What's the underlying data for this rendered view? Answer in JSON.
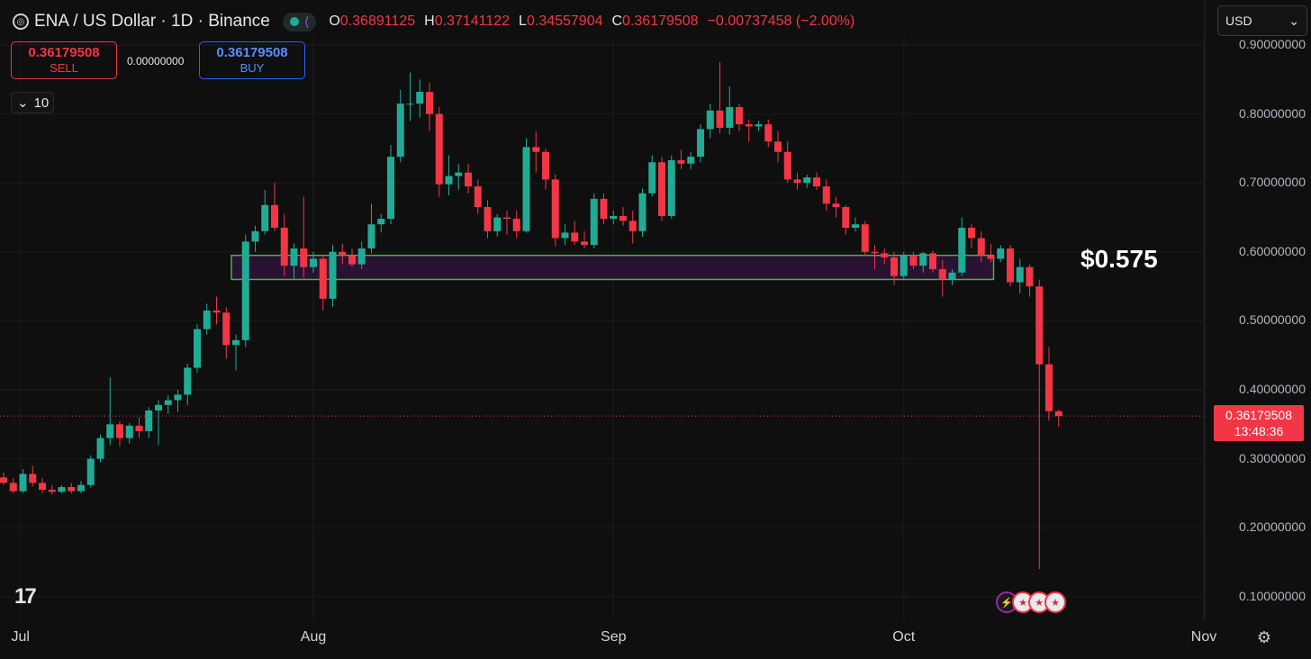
{
  "header": {
    "symbol_title": "ENA / US Dollar · 1D · Binance",
    "ohlc": [
      {
        "key": "O",
        "value": "0.36891125"
      },
      {
        "key": "H",
        "value": "0.37141122"
      },
      {
        "key": "L",
        "value": "0.34557904"
      },
      {
        "key": "C",
        "value": "0.36179508"
      }
    ],
    "change": "−0.00737458 (−2.00%)"
  },
  "trade": {
    "sell_price": "0.36179508",
    "sell_label": "SELL",
    "spread": "0.00000000",
    "buy_price": "0.36179508",
    "buy_label": "BUY",
    "quantity": "10"
  },
  "currency_selector": "USD",
  "current_price": {
    "price": "0.36179508",
    "countdown": "13:48:36"
  },
  "annotation": "$0.575",
  "colors": {
    "up": "#22ab94",
    "down": "#f23645",
    "zone_border": "#4caf50",
    "zone_fill": "#2a1233"
  },
  "icons": [
    "tradingview-logo",
    "live-dot-icon",
    "data-glyph-icon",
    "chevron-down-icon",
    "settings-icon",
    "lightning-event-icon",
    "us-flag-event-icon"
  ],
  "chart_data": {
    "type": "candlestick",
    "title": "ENA / US Dollar · 1D · Binance",
    "ylim": [
      0.07,
      0.92
    ],
    "y_ticks": [
      "0.10000000",
      "0.20000000",
      "0.30000000",
      "0.40000000",
      "0.50000000",
      "0.60000000",
      "0.70000000",
      "0.80000000",
      "0.90000000"
    ],
    "x_ticks": [
      "Jul",
      "Aug",
      "Sep",
      "Oct",
      "Nov"
    ],
    "zone": {
      "low": 0.56,
      "high": 0.595,
      "from": "Jul 24",
      "to": "Oct 10"
    },
    "candles": [
      {
        "date": "Jun 30",
        "o": 0.273,
        "h": 0.28,
        "l": 0.262,
        "c": 0.265
      },
      {
        "date": "Jul 1",
        "o": 0.265,
        "h": 0.272,
        "l": 0.25,
        "c": 0.253
      },
      {
        "date": "Jul 2",
        "o": 0.253,
        "h": 0.285,
        "l": 0.25,
        "c": 0.278
      },
      {
        "date": "Jul 3",
        "o": 0.278,
        "h": 0.29,
        "l": 0.26,
        "c": 0.265
      },
      {
        "date": "Jul 4",
        "o": 0.265,
        "h": 0.272,
        "l": 0.25,
        "c": 0.255
      },
      {
        "date": "Jul 5",
        "o": 0.255,
        "h": 0.262,
        "l": 0.248,
        "c": 0.252
      },
      {
        "date": "Jul 6",
        "o": 0.252,
        "h": 0.262,
        "l": 0.25,
        "c": 0.259
      },
      {
        "date": "Jul 7",
        "o": 0.259,
        "h": 0.265,
        "l": 0.25,
        "c": 0.253
      },
      {
        "date": "Jul 8",
        "o": 0.253,
        "h": 0.268,
        "l": 0.25,
        "c": 0.262
      },
      {
        "date": "Jul 9",
        "o": 0.262,
        "h": 0.305,
        "l": 0.258,
        "c": 0.3
      },
      {
        "date": "Jul 10",
        "o": 0.3,
        "h": 0.335,
        "l": 0.295,
        "c": 0.33
      },
      {
        "date": "Jul 11",
        "o": 0.33,
        "h": 0.418,
        "l": 0.32,
        "c": 0.35
      },
      {
        "date": "Jul 12",
        "o": 0.35,
        "h": 0.355,
        "l": 0.318,
        "c": 0.33
      },
      {
        "date": "Jul 13",
        "o": 0.33,
        "h": 0.352,
        "l": 0.322,
        "c": 0.348
      },
      {
        "date": "Jul 14",
        "o": 0.348,
        "h": 0.36,
        "l": 0.33,
        "c": 0.34
      },
      {
        "date": "Jul 15",
        "o": 0.34,
        "h": 0.375,
        "l": 0.33,
        "c": 0.37
      },
      {
        "date": "Jul 16",
        "o": 0.37,
        "h": 0.385,
        "l": 0.32,
        "c": 0.378
      },
      {
        "date": "Jul 17",
        "o": 0.378,
        "h": 0.392,
        "l": 0.365,
        "c": 0.385
      },
      {
        "date": "Jul 18",
        "o": 0.385,
        "h": 0.4,
        "l": 0.368,
        "c": 0.393
      },
      {
        "date": "Jul 19",
        "o": 0.393,
        "h": 0.438,
        "l": 0.378,
        "c": 0.432
      },
      {
        "date": "Jul 20",
        "o": 0.432,
        "h": 0.495,
        "l": 0.425,
        "c": 0.488
      },
      {
        "date": "Jul 21",
        "o": 0.488,
        "h": 0.525,
        "l": 0.48,
        "c": 0.515
      },
      {
        "date": "Jul 22",
        "o": 0.515,
        "h": 0.535,
        "l": 0.495,
        "c": 0.512
      },
      {
        "date": "Jul 23",
        "o": 0.512,
        "h": 0.52,
        "l": 0.445,
        "c": 0.465
      },
      {
        "date": "Jul 24",
        "o": 0.465,
        "h": 0.48,
        "l": 0.428,
        "c": 0.472
      },
      {
        "date": "Jul 25",
        "o": 0.472,
        "h": 0.625,
        "l": 0.462,
        "c": 0.615
      },
      {
        "date": "Jul 26",
        "o": 0.615,
        "h": 0.638,
        "l": 0.6,
        "c": 0.63
      },
      {
        "date": "Jul 27",
        "o": 0.63,
        "h": 0.69,
        "l": 0.625,
        "c": 0.668
      },
      {
        "date": "Jul 28",
        "o": 0.668,
        "h": 0.7,
        "l": 0.63,
        "c": 0.635
      },
      {
        "date": "Jul 29",
        "o": 0.635,
        "h": 0.655,
        "l": 0.565,
        "c": 0.58
      },
      {
        "date": "Jul 30",
        "o": 0.58,
        "h": 0.612,
        "l": 0.56,
        "c": 0.605
      },
      {
        "date": "Jul 31",
        "o": 0.605,
        "h": 0.68,
        "l": 0.562,
        "c": 0.578
      },
      {
        "date": "Aug 1",
        "o": 0.578,
        "h": 0.6,
        "l": 0.57,
        "c": 0.59
      },
      {
        "date": "Aug 2",
        "o": 0.59,
        "h": 0.595,
        "l": 0.515,
        "c": 0.532
      },
      {
        "date": "Aug 3",
        "o": 0.532,
        "h": 0.61,
        "l": 0.52,
        "c": 0.6
      },
      {
        "date": "Aug 4",
        "o": 0.6,
        "h": 0.612,
        "l": 0.582,
        "c": 0.595
      },
      {
        "date": "Aug 5",
        "o": 0.595,
        "h": 0.605,
        "l": 0.578,
        "c": 0.582
      },
      {
        "date": "Aug 6",
        "o": 0.582,
        "h": 0.615,
        "l": 0.575,
        "c": 0.605
      },
      {
        "date": "Aug 7",
        "o": 0.605,
        "h": 0.67,
        "l": 0.598,
        "c": 0.64
      },
      {
        "date": "Aug 8",
        "o": 0.64,
        "h": 0.655,
        "l": 0.628,
        "c": 0.648
      },
      {
        "date": "Aug 9",
        "o": 0.648,
        "h": 0.755,
        "l": 0.64,
        "c": 0.738
      },
      {
        "date": "Aug 10",
        "o": 0.738,
        "h": 0.835,
        "l": 0.73,
        "c": 0.815
      },
      {
        "date": "Aug 11",
        "o": 0.815,
        "h": 0.86,
        "l": 0.79,
        "c": 0.815
      },
      {
        "date": "Aug 12",
        "o": 0.815,
        "h": 0.85,
        "l": 0.795,
        "c": 0.832
      },
      {
        "date": "Aug 13",
        "o": 0.832,
        "h": 0.845,
        "l": 0.775,
        "c": 0.8
      },
      {
        "date": "Aug 14",
        "o": 0.8,
        "h": 0.81,
        "l": 0.68,
        "c": 0.698
      },
      {
        "date": "Aug 15",
        "o": 0.698,
        "h": 0.74,
        "l": 0.682,
        "c": 0.71
      },
      {
        "date": "Aug 16",
        "o": 0.71,
        "h": 0.728,
        "l": 0.69,
        "c": 0.715
      },
      {
        "date": "Aug 17",
        "o": 0.715,
        "h": 0.728,
        "l": 0.685,
        "c": 0.695
      },
      {
        "date": "Aug 18",
        "o": 0.695,
        "h": 0.705,
        "l": 0.655,
        "c": 0.665
      },
      {
        "date": "Aug 19",
        "o": 0.665,
        "h": 0.675,
        "l": 0.62,
        "c": 0.63
      },
      {
        "date": "Aug 20",
        "o": 0.63,
        "h": 0.655,
        "l": 0.622,
        "c": 0.65
      },
      {
        "date": "Aug 21",
        "o": 0.65,
        "h": 0.66,
        "l": 0.625,
        "c": 0.648
      },
      {
        "date": "Aug 22",
        "o": 0.648,
        "h": 0.66,
        "l": 0.62,
        "c": 0.63
      },
      {
        "date": "Aug 23",
        "o": 0.63,
        "h": 0.765,
        "l": 0.628,
        "c": 0.752
      },
      {
        "date": "Aug 24",
        "o": 0.752,
        "h": 0.775,
        "l": 0.715,
        "c": 0.745
      },
      {
        "date": "Aug 25",
        "o": 0.745,
        "h": 0.75,
        "l": 0.69,
        "c": 0.705
      },
      {
        "date": "Aug 26",
        "o": 0.705,
        "h": 0.712,
        "l": 0.608,
        "c": 0.62
      },
      {
        "date": "Aug 27",
        "o": 0.62,
        "h": 0.64,
        "l": 0.61,
        "c": 0.628
      },
      {
        "date": "Aug 28",
        "o": 0.628,
        "h": 0.645,
        "l": 0.61,
        "c": 0.615
      },
      {
        "date": "Aug 29",
        "o": 0.615,
        "h": 0.63,
        "l": 0.605,
        "c": 0.61
      },
      {
        "date": "Aug 30",
        "o": 0.61,
        "h": 0.685,
        "l": 0.605,
        "c": 0.677
      },
      {
        "date": "Aug 31",
        "o": 0.677,
        "h": 0.685,
        "l": 0.64,
        "c": 0.648
      },
      {
        "date": "Sep 1",
        "o": 0.648,
        "h": 0.66,
        "l": 0.64,
        "c": 0.652
      },
      {
        "date": "Sep 2",
        "o": 0.652,
        "h": 0.665,
        "l": 0.638,
        "c": 0.645
      },
      {
        "date": "Sep 3",
        "o": 0.645,
        "h": 0.66,
        "l": 0.612,
        "c": 0.63
      },
      {
        "date": "Sep 4",
        "o": 0.63,
        "h": 0.692,
        "l": 0.622,
        "c": 0.685
      },
      {
        "date": "Sep 5",
        "o": 0.685,
        "h": 0.74,
        "l": 0.68,
        "c": 0.73
      },
      {
        "date": "Sep 6",
        "o": 0.73,
        "h": 0.738,
        "l": 0.645,
        "c": 0.652
      },
      {
        "date": "Sep 7",
        "o": 0.652,
        "h": 0.74,
        "l": 0.648,
        "c": 0.733
      },
      {
        "date": "Sep 8",
        "o": 0.733,
        "h": 0.748,
        "l": 0.72,
        "c": 0.728
      },
      {
        "date": "Sep 9",
        "o": 0.728,
        "h": 0.745,
        "l": 0.72,
        "c": 0.738
      },
      {
        "date": "Sep 10",
        "o": 0.738,
        "h": 0.785,
        "l": 0.73,
        "c": 0.778
      },
      {
        "date": "Sep 11",
        "o": 0.778,
        "h": 0.815,
        "l": 0.765,
        "c": 0.805
      },
      {
        "date": "Sep 12",
        "o": 0.805,
        "h": 0.875,
        "l": 0.772,
        "c": 0.78
      },
      {
        "date": "Sep 13",
        "o": 0.78,
        "h": 0.84,
        "l": 0.77,
        "c": 0.81
      },
      {
        "date": "Sep 14",
        "o": 0.81,
        "h": 0.815,
        "l": 0.775,
        "c": 0.785
      },
      {
        "date": "Sep 15",
        "o": 0.785,
        "h": 0.792,
        "l": 0.76,
        "c": 0.782
      },
      {
        "date": "Sep 16",
        "o": 0.782,
        "h": 0.79,
        "l": 0.775,
        "c": 0.785
      },
      {
        "date": "Sep 17",
        "o": 0.785,
        "h": 0.792,
        "l": 0.752,
        "c": 0.76
      },
      {
        "date": "Sep 18",
        "o": 0.76,
        "h": 0.775,
        "l": 0.73,
        "c": 0.745
      },
      {
        "date": "Sep 19",
        "o": 0.745,
        "h": 0.76,
        "l": 0.7,
        "c": 0.705
      },
      {
        "date": "Sep 20",
        "o": 0.705,
        "h": 0.715,
        "l": 0.69,
        "c": 0.7
      },
      {
        "date": "Sep 21",
        "o": 0.7,
        "h": 0.712,
        "l": 0.693,
        "c": 0.708
      },
      {
        "date": "Sep 22",
        "o": 0.708,
        "h": 0.715,
        "l": 0.69,
        "c": 0.695
      },
      {
        "date": "Sep 23",
        "o": 0.695,
        "h": 0.705,
        "l": 0.66,
        "c": 0.67
      },
      {
        "date": "Sep 24",
        "o": 0.67,
        "h": 0.68,
        "l": 0.65,
        "c": 0.665
      },
      {
        "date": "Sep 25",
        "o": 0.665,
        "h": 0.668,
        "l": 0.625,
        "c": 0.635
      },
      {
        "date": "Sep 26",
        "o": 0.635,
        "h": 0.65,
        "l": 0.63,
        "c": 0.64
      },
      {
        "date": "Sep 27",
        "o": 0.64,
        "h": 0.645,
        "l": 0.595,
        "c": 0.6
      },
      {
        "date": "Sep 28",
        "o": 0.6,
        "h": 0.61,
        "l": 0.575,
        "c": 0.598
      },
      {
        "date": "Sep 29",
        "o": 0.598,
        "h": 0.605,
        "l": 0.582,
        "c": 0.592
      },
      {
        "date": "Sep 30",
        "o": 0.592,
        "h": 0.6,
        "l": 0.552,
        "c": 0.565
      },
      {
        "date": "Oct 1",
        "o": 0.565,
        "h": 0.6,
        "l": 0.56,
        "c": 0.595
      },
      {
        "date": "Oct 2",
        "o": 0.595,
        "h": 0.6,
        "l": 0.575,
        "c": 0.58
      },
      {
        "date": "Oct 3",
        "o": 0.58,
        "h": 0.6,
        "l": 0.57,
        "c": 0.598
      },
      {
        "date": "Oct 4",
        "o": 0.598,
        "h": 0.602,
        "l": 0.57,
        "c": 0.575
      },
      {
        "date": "Oct 5",
        "o": 0.575,
        "h": 0.588,
        "l": 0.535,
        "c": 0.56
      },
      {
        "date": "Oct 6",
        "o": 0.56,
        "h": 0.575,
        "l": 0.552,
        "c": 0.57
      },
      {
        "date": "Oct 7",
        "o": 0.57,
        "h": 0.65,
        "l": 0.565,
        "c": 0.635
      },
      {
        "date": "Oct 8",
        "o": 0.635,
        "h": 0.64,
        "l": 0.605,
        "c": 0.62
      },
      {
        "date": "Oct 9",
        "o": 0.62,
        "h": 0.63,
        "l": 0.585,
        "c": 0.595
      },
      {
        "date": "Oct 10",
        "o": 0.595,
        "h": 0.612,
        "l": 0.585,
        "c": 0.59
      },
      {
        "date": "Oct 11",
        "o": 0.59,
        "h": 0.61,
        "l": 0.585,
        "c": 0.605
      },
      {
        "date": "Oct 12",
        "o": 0.605,
        "h": 0.61,
        "l": 0.55,
        "c": 0.556
      },
      {
        "date": "Oct 13",
        "o": 0.556,
        "h": 0.59,
        "l": 0.54,
        "c": 0.578
      },
      {
        "date": "Oct 14",
        "o": 0.578,
        "h": 0.582,
        "l": 0.535,
        "c": 0.55
      },
      {
        "date": "Oct 15",
        "o": 0.55,
        "h": 0.56,
        "l": 0.14,
        "c": 0.437
      },
      {
        "date": "Oct 16",
        "o": 0.437,
        "h": 0.462,
        "l": 0.355,
        "c": 0.369
      },
      {
        "date": "Oct 17",
        "o": 0.369,
        "h": 0.371,
        "l": 0.346,
        "c": 0.362
      }
    ]
  }
}
